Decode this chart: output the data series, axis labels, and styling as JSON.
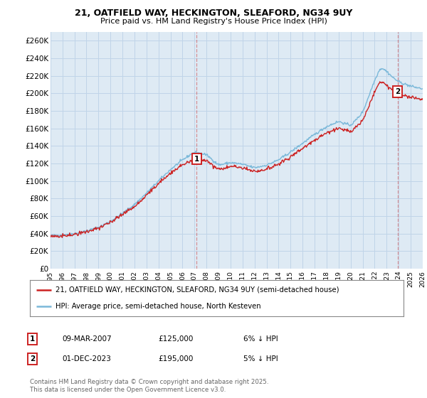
{
  "title": "21, OATFIELD WAY, HECKINGTON, SLEAFORD, NG34 9UY",
  "subtitle": "Price paid vs. HM Land Registry's House Price Index (HPI)",
  "ylabel_ticks": [
    "£0",
    "£20K",
    "£40K",
    "£60K",
    "£80K",
    "£100K",
    "£120K",
    "£140K",
    "£160K",
    "£180K",
    "£200K",
    "£220K",
    "£240K",
    "£260K"
  ],
  "ytick_values": [
    0,
    20000,
    40000,
    60000,
    80000,
    100000,
    120000,
    140000,
    160000,
    180000,
    200000,
    220000,
    240000,
    260000
  ],
  "ylim": [
    0,
    270000
  ],
  "hpi_color": "#7ab8d9",
  "price_color": "#cc2222",
  "vline_color": "#cc2222",
  "vline_alpha": 0.45,
  "grid_color": "#c0d4e8",
  "bg_color": "#deeaf4",
  "legend_label_price": "21, OATFIELD WAY, HECKINGTON, SLEAFORD, NG34 9UY (semi-detached house)",
  "legend_label_hpi": "HPI: Average price, semi-detached house, North Kesteven",
  "transaction1_date": "09-MAR-2007",
  "transaction1_price": "£125,000",
  "transaction1_info": "6% ↓ HPI",
  "transaction2_date": "01-DEC-2023",
  "transaction2_price": "£195,000",
  "transaction2_info": "5% ↓ HPI",
  "footer": "Contains HM Land Registry data © Crown copyright and database right 2025.\nThis data is licensed under the Open Government Licence v3.0.",
  "x_start_year": 1995,
  "x_end_year": 2026,
  "sale1_year": 2007.18,
  "sale2_year": 2023.92
}
